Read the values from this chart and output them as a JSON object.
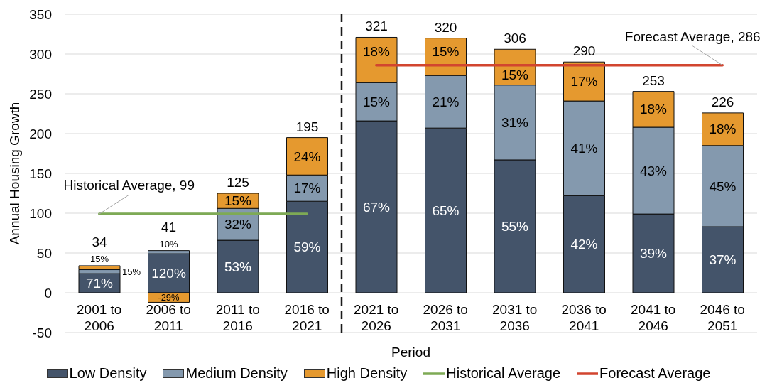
{
  "chart_data": {
    "type": "bar",
    "stacked": true,
    "ylabel": "Annual Housing Growth",
    "xlabel": "Period",
    "categories": [
      "2001 to 2006",
      "2006 to 2011",
      "2011 to 2016",
      "2016 to 2021",
      "2021 to 2026",
      "2026 to 2031",
      "2031 to 2036",
      "2036 to 2041",
      "2041 to 2046",
      "2046 to 2051"
    ],
    "series": [
      {
        "name": "Low Density",
        "color": "#44546a",
        "values": [
          24,
          49,
          66,
          115,
          216,
          207,
          167,
          122,
          99,
          83
        ]
      },
      {
        "name": "Medium Density",
        "color": "#8499ae",
        "values": [
          5,
          4,
          40,
          33,
          48,
          66,
          94,
          119,
          109,
          102
        ]
      },
      {
        "name": "High Density",
        "color": "#e5992f",
        "values": [
          5,
          -12,
          19,
          47,
          57,
          47,
          45,
          49,
          45,
          41
        ]
      },
      {
        "name": "Historical Average",
        "type": "line",
        "color": "#7eaa55",
        "values": [
          99,
          99,
          99,
          99,
          null,
          null,
          null,
          null,
          null,
          null
        ]
      },
      {
        "name": "Forecast Average",
        "type": "line",
        "color": "#d2452f",
        "values": [
          null,
          null,
          null,
          null,
          286,
          286,
          286,
          286,
          286,
          286
        ]
      }
    ],
    "totals": [
      "34",
      "41",
      "125",
      "195",
      "321",
      "320",
      "306",
      "290",
      "253",
      "226"
    ],
    "ylim": [
      -50,
      350
    ],
    "yticks": [
      -50,
      0,
      50,
      100,
      150,
      200,
      250,
      300,
      350
    ],
    "grid": "y",
    "legend": "bottom",
    "marker": "none",
    "ref_lines": [
      {
        "axis": "x",
        "value": "2021 to 2026",
        "color": "#1a1a1a",
        "line_style": "dashed"
      }
    ],
    "annotations": [
      "71%",
      "15%",
      "15%",
      "120%",
      "10%",
      "-29%",
      "53%",
      "32%",
      "15%",
      "59%",
      "17%",
      "24%",
      "67%",
      "15%",
      "18%",
      "65%",
      "21%",
      "15%",
      "55%",
      "31%",
      "15%",
      "42%",
      "41%",
      "17%",
      "39%",
      "43%",
      "18%",
      "37%",
      "45%",
      "18%",
      {
        "text": "Historical Average, 99",
        "x": "2001 to 2006",
        "y": 99
      },
      {
        "text": "Forecast Average, 286",
        "x": "2046 to 2051",
        "y": 286
      }
    ]
  }
}
